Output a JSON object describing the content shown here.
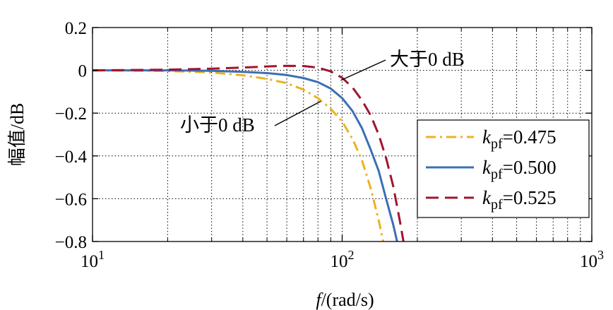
{
  "chart_data": {
    "type": "line",
    "xlabel_italic": "f",
    "xlabel_rest": "/(rad/s)",
    "ylabel": "幅值/dB",
    "xscale": "log",
    "xlim": [
      10,
      1000
    ],
    "ylim": [
      -0.8,
      0.2
    ],
    "grid": true,
    "legend_position": "lower-right",
    "x_ticks": [
      {
        "value": 10,
        "base": "10",
        "exp": "1"
      },
      {
        "value": 100,
        "base": "10",
        "exp": "2"
      },
      {
        "value": 1000,
        "base": "10",
        "exp": "3"
      }
    ],
    "y_ticks": [
      {
        "value": 0.2,
        "label": "0.2"
      },
      {
        "value": 0,
        "label": "0"
      },
      {
        "value": -0.2,
        "label": "−0.2"
      },
      {
        "value": -0.4,
        "label": "−0.4"
      },
      {
        "value": -0.6,
        "label": "−0.6"
      },
      {
        "value": -0.8,
        "label": "−0.8"
      }
    ],
    "series": [
      {
        "name_prefix": "k",
        "name_sub": "pf",
        "name_value": "=0.475",
        "color": "#EDB120",
        "dash": "dashdot",
        "x": [
          10,
          20,
          30,
          40,
          50,
          60,
          70,
          80,
          90,
          100,
          110,
          120,
          130,
          140,
          146,
          150
        ],
        "y": [
          0,
          -0.003,
          -0.01,
          -0.023,
          -0.04,
          -0.06,
          -0.09,
          -0.13,
          -0.18,
          -0.24,
          -0.32,
          -0.42,
          -0.55,
          -0.7,
          -0.8,
          -0.85
        ]
      },
      {
        "name_prefix": "k",
        "name_sub": "pf",
        "name_value": "=0.500",
        "color": "#3A6FB5",
        "dash": "solid",
        "x": [
          10,
          20,
          30,
          40,
          50,
          60,
          70,
          80,
          90,
          100,
          110,
          120,
          130,
          140,
          150,
          160,
          166
        ],
        "y": [
          0,
          0,
          -0.002,
          -0.007,
          -0.013,
          -0.022,
          -0.036,
          -0.055,
          -0.085,
          -0.13,
          -0.19,
          -0.27,
          -0.37,
          -0.47,
          -0.6,
          -0.72,
          -0.8
        ]
      },
      {
        "name_prefix": "k",
        "name_sub": "pf",
        "name_value": "=0.525",
        "color": "#A2142F",
        "dash": "dashed",
        "x": [
          10,
          20,
          30,
          40,
          50,
          60,
          70,
          80,
          90,
          100,
          110,
          120,
          130,
          140,
          150,
          160,
          170,
          176
        ],
        "y": [
          0,
          0.003,
          0.008,
          0.013,
          0.018,
          0.021,
          0.02,
          0.013,
          -0.005,
          -0.035,
          -0.08,
          -0.14,
          -0.21,
          -0.3,
          -0.41,
          -0.54,
          -0.7,
          -0.8
        ]
      }
    ],
    "annotations": [
      {
        "text": "大于0 dB",
        "x_data": 100,
        "y_data": -0.04
      },
      {
        "text": "小于0 dB",
        "x_data": 82,
        "y_data": -0.145
      }
    ]
  }
}
